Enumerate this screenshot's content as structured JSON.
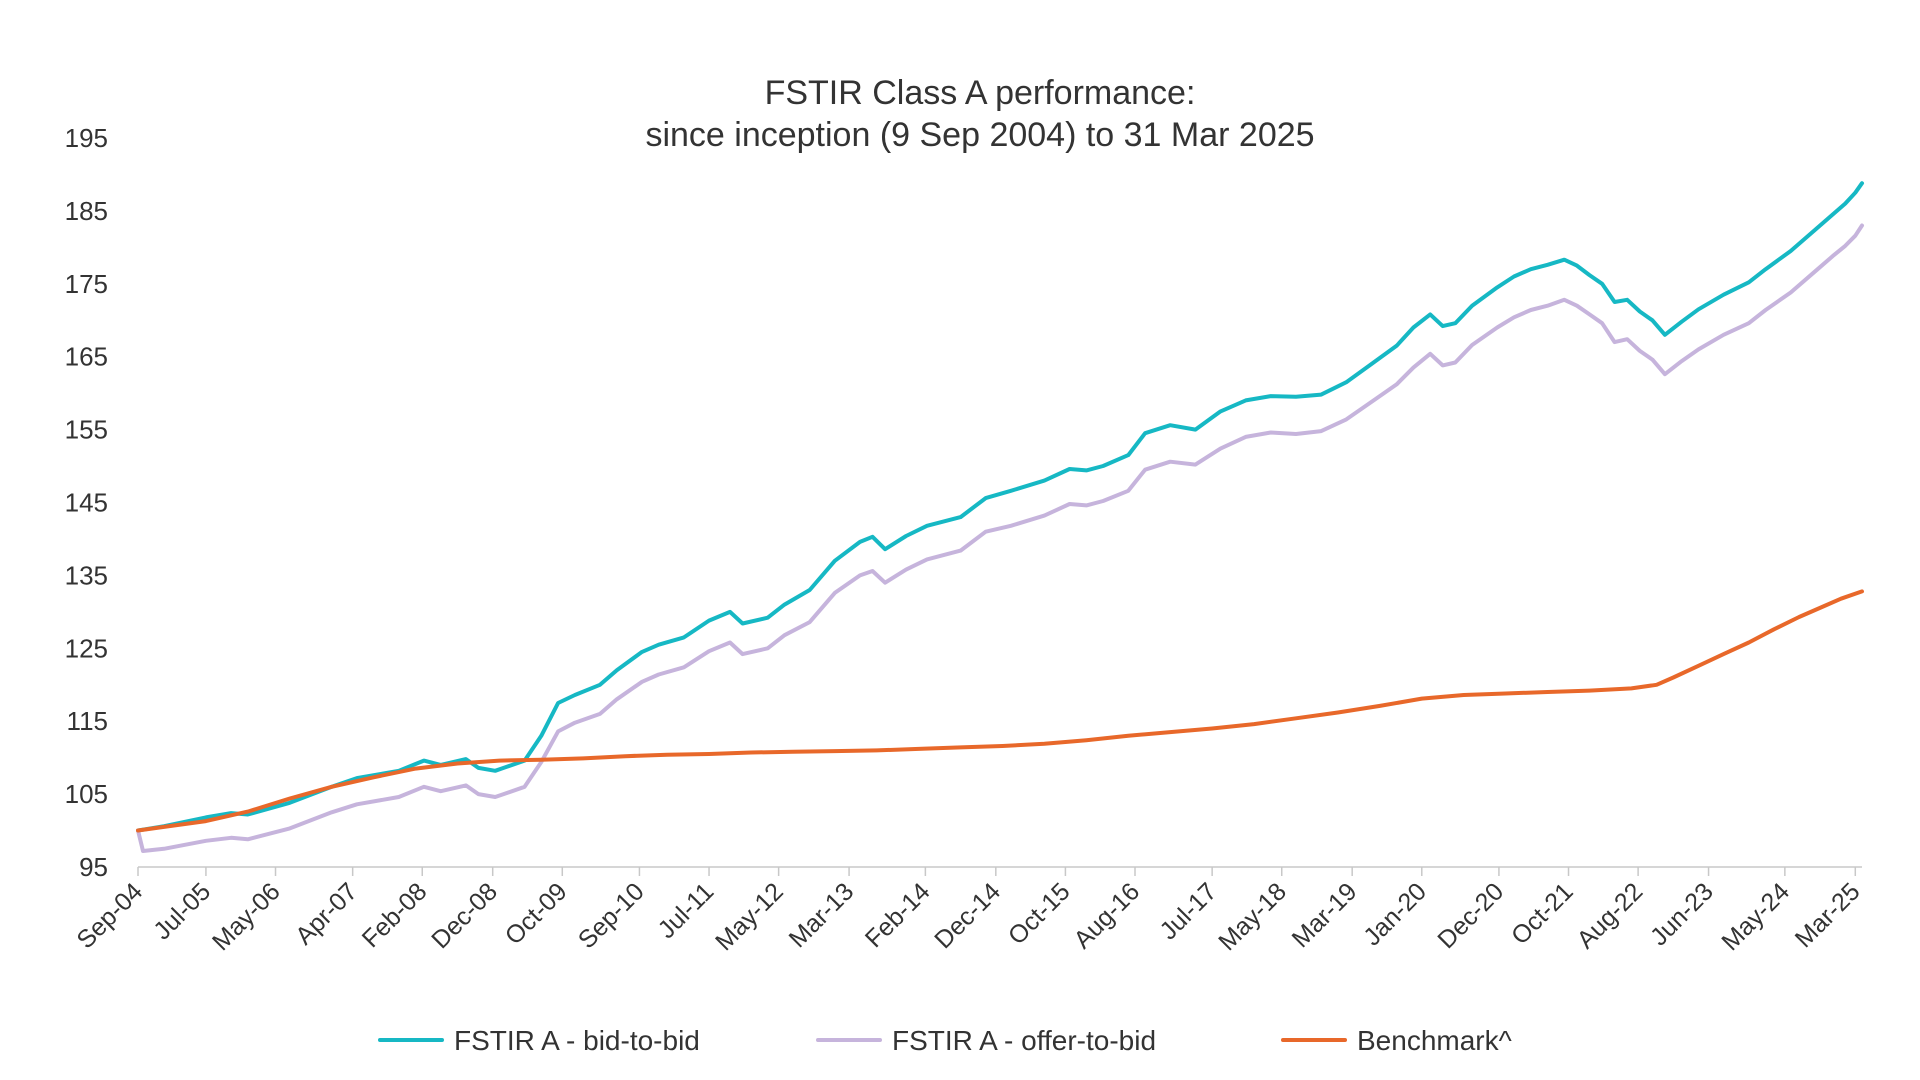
{
  "chart_data": {
    "type": "line",
    "title": "FSTIR Class A performance:",
    "subtitle": "since inception (9 Sep 2004) to 31 Mar 2025",
    "xlabel": "",
    "ylabel": "",
    "ylim": [
      95,
      195
    ],
    "yticks": [
      95,
      105,
      115,
      125,
      135,
      145,
      155,
      165,
      175,
      185,
      195
    ],
    "xlim": [
      2004.69,
      2025.25
    ],
    "x_tick_labels": [
      {
        "label": "Sep-04",
        "x": 2004.69
      },
      {
        "label": "Jul-05",
        "x": 2005.5
      },
      {
        "label": "May-06",
        "x": 2006.33
      },
      {
        "label": "Apr-07",
        "x": 2007.25
      },
      {
        "label": "Feb-08",
        "x": 2008.08
      },
      {
        "label": "Dec-08",
        "x": 2008.92
      },
      {
        "label": "Oct-09",
        "x": 2009.75
      },
      {
        "label": "Sep-10",
        "x": 2010.67
      },
      {
        "label": "Jul-11",
        "x": 2011.5
      },
      {
        "label": "May-12",
        "x": 2012.33
      },
      {
        "label": "Mar-13",
        "x": 2013.17
      },
      {
        "label": "Feb-14",
        "x": 2014.08
      },
      {
        "label": "Dec-14",
        "x": 2014.92
      },
      {
        "label": "Oct-15",
        "x": 2015.75
      },
      {
        "label": "Aug-16",
        "x": 2016.58
      },
      {
        "label": "Jul-17",
        "x": 2017.5
      },
      {
        "label": "May-18",
        "x": 2018.33
      },
      {
        "label": "Mar-19",
        "x": 2019.17
      },
      {
        "label": "Jan-20",
        "x": 2020.0
      },
      {
        "label": "Dec-20",
        "x": 2020.92
      },
      {
        "label": "Oct-21",
        "x": 2021.75
      },
      {
        "label": "Aug-22",
        "x": 2022.58
      },
      {
        "label": "Jun-23",
        "x": 2023.42
      },
      {
        "label": "May-24",
        "x": 2024.33
      },
      {
        "label": "Mar-25",
        "x": 2025.17
      }
    ],
    "legend_position": "bottom",
    "grid": false,
    "series": [
      {
        "name": "FSTIR A - bid-to-bid",
        "color": "#16b8c4",
        "points": [
          [
            2004.69,
            100
          ],
          [
            2005.0,
            100.6
          ],
          [
            2005.5,
            101.8
          ],
          [
            2005.8,
            102.4
          ],
          [
            2006.0,
            102.2
          ],
          [
            2006.5,
            103.8
          ],
          [
            2007.0,
            106.0
          ],
          [
            2007.3,
            107.2
          ],
          [
            2007.8,
            108.2
          ],
          [
            2008.1,
            109.6
          ],
          [
            2008.3,
            109.0
          ],
          [
            2008.6,
            109.8
          ],
          [
            2008.75,
            108.6
          ],
          [
            2008.95,
            108.2
          ],
          [
            2009.05,
            108.6
          ],
          [
            2009.3,
            109.6
          ],
          [
            2009.5,
            113.0
          ],
          [
            2009.7,
            117.5
          ],
          [
            2009.9,
            118.6
          ],
          [
            2010.2,
            120.0
          ],
          [
            2010.4,
            122.0
          ],
          [
            2010.7,
            124.5
          ],
          [
            2010.9,
            125.5
          ],
          [
            2011.2,
            126.5
          ],
          [
            2011.5,
            128.8
          ],
          [
            2011.75,
            130.0
          ],
          [
            2011.9,
            128.4
          ],
          [
            2012.2,
            129.2
          ],
          [
            2012.4,
            131.0
          ],
          [
            2012.7,
            133.0
          ],
          [
            2013.0,
            137.0
          ],
          [
            2013.3,
            139.6
          ],
          [
            2013.45,
            140.3
          ],
          [
            2013.6,
            138.6
          ],
          [
            2013.85,
            140.4
          ],
          [
            2014.1,
            141.8
          ],
          [
            2014.5,
            143.0
          ],
          [
            2014.8,
            145.6
          ],
          [
            2015.1,
            146.6
          ],
          [
            2015.5,
            148.0
          ],
          [
            2015.8,
            149.6
          ],
          [
            2016.0,
            149.4
          ],
          [
            2016.2,
            150.0
          ],
          [
            2016.5,
            151.5
          ],
          [
            2016.7,
            154.5
          ],
          [
            2017.0,
            155.6
          ],
          [
            2017.3,
            155.0
          ],
          [
            2017.6,
            157.5
          ],
          [
            2017.9,
            159.0
          ],
          [
            2018.2,
            159.6
          ],
          [
            2018.5,
            159.5
          ],
          [
            2018.8,
            159.8
          ],
          [
            2019.1,
            161.5
          ],
          [
            2019.4,
            164.0
          ],
          [
            2019.7,
            166.5
          ],
          [
            2019.9,
            169.0
          ],
          [
            2020.1,
            170.8
          ],
          [
            2020.25,
            169.2
          ],
          [
            2020.4,
            169.6
          ],
          [
            2020.6,
            172.0
          ],
          [
            2020.9,
            174.5
          ],
          [
            2021.1,
            176.0
          ],
          [
            2021.3,
            177.0
          ],
          [
            2021.5,
            177.6
          ],
          [
            2021.7,
            178.3
          ],
          [
            2021.85,
            177.5
          ],
          [
            2022.0,
            176.2
          ],
          [
            2022.15,
            175.0
          ],
          [
            2022.3,
            172.5
          ],
          [
            2022.45,
            172.8
          ],
          [
            2022.6,
            171.2
          ],
          [
            2022.75,
            170.0
          ],
          [
            2022.9,
            168.0
          ],
          [
            2023.1,
            169.8
          ],
          [
            2023.3,
            171.5
          ],
          [
            2023.6,
            173.5
          ],
          [
            2023.9,
            175.2
          ],
          [
            2024.1,
            177.0
          ],
          [
            2024.4,
            179.5
          ],
          [
            2024.7,
            182.5
          ],
          [
            2024.9,
            184.5
          ],
          [
            2025.05,
            186.0
          ],
          [
            2025.17,
            187.5
          ],
          [
            2025.25,
            188.8
          ]
        ]
      },
      {
        "name": "FSTIR A - offer-to-bid",
        "color": "#c6b4dc",
        "points": [
          [
            2004.69,
            100
          ],
          [
            2004.75,
            97.2
          ],
          [
            2005.0,
            97.5
          ],
          [
            2005.5,
            98.6
          ],
          [
            2005.8,
            99.0
          ],
          [
            2006.0,
            98.8
          ],
          [
            2006.5,
            100.3
          ],
          [
            2007.0,
            102.5
          ],
          [
            2007.3,
            103.6
          ],
          [
            2007.8,
            104.6
          ],
          [
            2008.1,
            106.0
          ],
          [
            2008.3,
            105.4
          ],
          [
            2008.6,
            106.2
          ],
          [
            2008.75,
            105.0
          ],
          [
            2008.95,
            104.6
          ],
          [
            2009.05,
            105.0
          ],
          [
            2009.3,
            106.0
          ],
          [
            2009.5,
            109.4
          ],
          [
            2009.7,
            113.6
          ],
          [
            2009.9,
            114.8
          ],
          [
            2010.2,
            116.0
          ],
          [
            2010.4,
            118.0
          ],
          [
            2010.7,
            120.4
          ],
          [
            2010.9,
            121.4
          ],
          [
            2011.2,
            122.4
          ],
          [
            2011.5,
            124.6
          ],
          [
            2011.75,
            125.8
          ],
          [
            2011.9,
            124.2
          ],
          [
            2012.2,
            125.0
          ],
          [
            2012.4,
            126.8
          ],
          [
            2012.7,
            128.6
          ],
          [
            2013.0,
            132.6
          ],
          [
            2013.3,
            135.0
          ],
          [
            2013.45,
            135.6
          ],
          [
            2013.6,
            134.0
          ],
          [
            2013.85,
            135.8
          ],
          [
            2014.1,
            137.2
          ],
          [
            2014.5,
            138.4
          ],
          [
            2014.8,
            141.0
          ],
          [
            2015.1,
            141.8
          ],
          [
            2015.5,
            143.2
          ],
          [
            2015.8,
            144.8
          ],
          [
            2016.0,
            144.6
          ],
          [
            2016.2,
            145.2
          ],
          [
            2016.5,
            146.6
          ],
          [
            2016.7,
            149.5
          ],
          [
            2017.0,
            150.6
          ],
          [
            2017.3,
            150.2
          ],
          [
            2017.6,
            152.4
          ],
          [
            2017.9,
            154.0
          ],
          [
            2018.2,
            154.6
          ],
          [
            2018.5,
            154.4
          ],
          [
            2018.8,
            154.8
          ],
          [
            2019.1,
            156.4
          ],
          [
            2019.4,
            158.8
          ],
          [
            2019.7,
            161.2
          ],
          [
            2019.9,
            163.5
          ],
          [
            2020.1,
            165.4
          ],
          [
            2020.25,
            163.8
          ],
          [
            2020.4,
            164.2
          ],
          [
            2020.6,
            166.6
          ],
          [
            2020.9,
            169.0
          ],
          [
            2021.1,
            170.4
          ],
          [
            2021.3,
            171.4
          ],
          [
            2021.5,
            172.0
          ],
          [
            2021.7,
            172.8
          ],
          [
            2021.85,
            172.0
          ],
          [
            2022.0,
            170.8
          ],
          [
            2022.15,
            169.6
          ],
          [
            2022.3,
            167.0
          ],
          [
            2022.45,
            167.4
          ],
          [
            2022.6,
            165.8
          ],
          [
            2022.75,
            164.6
          ],
          [
            2022.9,
            162.6
          ],
          [
            2023.1,
            164.4
          ],
          [
            2023.3,
            166.0
          ],
          [
            2023.6,
            168.0
          ],
          [
            2023.9,
            169.6
          ],
          [
            2024.1,
            171.4
          ],
          [
            2024.4,
            173.8
          ],
          [
            2024.7,
            176.8
          ],
          [
            2024.9,
            178.8
          ],
          [
            2025.05,
            180.2
          ],
          [
            2025.17,
            181.6
          ],
          [
            2025.25,
            183.0
          ]
        ]
      },
      {
        "name": "Benchmark^",
        "color": "#e8682a",
        "points": [
          [
            2004.69,
            100
          ],
          [
            2005.0,
            100.5
          ],
          [
            2005.5,
            101.3
          ],
          [
            2006.0,
            102.6
          ],
          [
            2006.5,
            104.4
          ],
          [
            2007.0,
            106.0
          ],
          [
            2007.5,
            107.3
          ],
          [
            2008.0,
            108.5
          ],
          [
            2008.5,
            109.2
          ],
          [
            2009.0,
            109.6
          ],
          [
            2009.5,
            109.7
          ],
          [
            2010.0,
            109.9
          ],
          [
            2010.5,
            110.2
          ],
          [
            2011.0,
            110.4
          ],
          [
            2011.5,
            110.5
          ],
          [
            2012.0,
            110.7
          ],
          [
            2012.5,
            110.8
          ],
          [
            2013.0,
            110.9
          ],
          [
            2013.5,
            111.0
          ],
          [
            2014.0,
            111.2
          ],
          [
            2014.5,
            111.4
          ],
          [
            2015.0,
            111.6
          ],
          [
            2015.5,
            111.9
          ],
          [
            2016.0,
            112.4
          ],
          [
            2016.5,
            113.0
          ],
          [
            2017.0,
            113.5
          ],
          [
            2017.5,
            114.0
          ],
          [
            2018.0,
            114.6
          ],
          [
            2018.5,
            115.4
          ],
          [
            2019.0,
            116.2
          ],
          [
            2019.5,
            117.1
          ],
          [
            2020.0,
            118.1
          ],
          [
            2020.5,
            118.6
          ],
          [
            2021.0,
            118.8
          ],
          [
            2021.5,
            119.0
          ],
          [
            2022.0,
            119.2
          ],
          [
            2022.5,
            119.5
          ],
          [
            2022.8,
            120.0
          ],
          [
            2023.0,
            121.0
          ],
          [
            2023.3,
            122.6
          ],
          [
            2023.6,
            124.2
          ],
          [
            2023.9,
            125.8
          ],
          [
            2024.2,
            127.6
          ],
          [
            2024.5,
            129.3
          ],
          [
            2024.8,
            130.8
          ],
          [
            2025.0,
            131.8
          ],
          [
            2025.25,
            132.8
          ]
        ]
      }
    ]
  }
}
